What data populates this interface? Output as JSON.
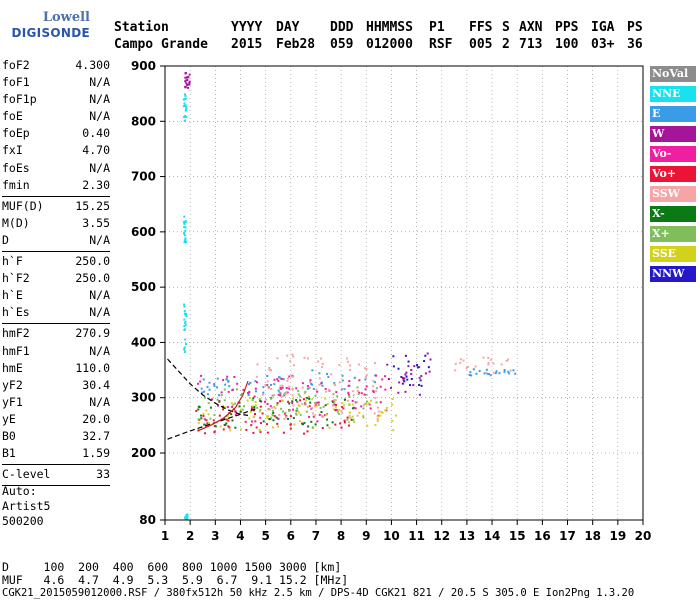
{
  "logo": {
    "top": "Lowell",
    "bottom": "DIGISONDE"
  },
  "header": {
    "row1": [
      "Station",
      "YYYY",
      "DAY",
      "DDD",
      "HHMMSS",
      "P1",
      "FFS",
      "S",
      "AXN",
      "PPS",
      "IGA",
      "PS"
    ],
    "row2": [
      "Campo Grande",
      "2015",
      "Feb28",
      "059",
      "012000",
      "RSF",
      "005",
      "2",
      "713",
      "100",
      "03+",
      "36"
    ]
  },
  "params": {
    "group1": [
      {
        "name": "foF2",
        "value": "4.300"
      },
      {
        "name": "foF1",
        "value": "N/A"
      },
      {
        "name": "foF1p",
        "value": "N/A"
      },
      {
        "name": "foE",
        "value": "N/A"
      },
      {
        "name": "foEp",
        "value": "0.40"
      },
      {
        "name": "fxI",
        "value": "4.70"
      },
      {
        "name": "foEs",
        "value": "N/A"
      },
      {
        "name": "fmin",
        "value": "2.30"
      }
    ],
    "group2": [
      {
        "name": "MUF(D)",
        "value": "15.25"
      },
      {
        "name": "M(D)",
        "value": "3.55"
      },
      {
        "name": "D",
        "value": "N/A"
      }
    ],
    "group3": [
      {
        "name": "h`F",
        "value": "250.0"
      },
      {
        "name": "h`F2",
        "value": "250.0"
      },
      {
        "name": "h`E",
        "value": "N/A"
      },
      {
        "name": "h`Es",
        "value": "N/A"
      }
    ],
    "group4": [
      {
        "name": "hmF2",
        "value": "270.9"
      },
      {
        "name": "hmF1",
        "value": "N/A"
      },
      {
        "name": "hmE",
        "value": "110.0"
      },
      {
        "name": "yF2",
        "value": "30.4"
      },
      {
        "name": "yF1",
        "value": "N/A"
      },
      {
        "name": "yE",
        "value": "20.0"
      },
      {
        "name": "B0",
        "value": "32.7"
      },
      {
        "name": "B1",
        "value": "1.59"
      }
    ],
    "group5": [
      {
        "name": "C-level",
        "value": "33"
      }
    ]
  },
  "auto": {
    "line1": "Auto:",
    "line2": "Artist5",
    "line3": "500200"
  },
  "legend": [
    {
      "label": "NoVal",
      "color": "#8c8c8c"
    },
    {
      "label": "NNE",
      "color": "#19e1f0"
    },
    {
      "label": "E",
      "color": "#3a9be6"
    },
    {
      "label": "W",
      "color": "#a5159a"
    },
    {
      "label": "Vo-",
      "color": "#f01ea0"
    },
    {
      "label": "Vo+",
      "color": "#eb1436"
    },
    {
      "label": "SSW",
      "color": "#f5a5a5"
    },
    {
      "label": "X-",
      "color": "#0b7a14"
    },
    {
      "label": "X+",
      "color": "#7fbe5a"
    },
    {
      "label": "SSE",
      "color": "#d2d21e"
    },
    {
      "label": "NNW",
      "color": "#2418c8"
    }
  ],
  "bottom": {
    "line1": "D     100  200  400  600  800 1000 1500 3000 [km]",
    "line2": "MUF   4.6  4.7  4.9  5.3  5.9  6.7  9.1 15.2 [MHz]",
    "line3": "CGK21_2015059012000.RSF / 380fx512h 50 kHz 2.5 km / DPS-4D CGK21 821 / 20.5 S 305.0 E Ion2Png 1.3.20"
  },
  "chart_data": {
    "type": "scatter",
    "title": "",
    "xlabel": "",
    "ylabel": "",
    "xlim": [
      1,
      20
    ],
    "ylim": [
      80,
      900
    ],
    "x_ticks": [
      1,
      2,
      3,
      4,
      5,
      6,
      7,
      8,
      9,
      10,
      11,
      12,
      13,
      14,
      15,
      16,
      17,
      18,
      19,
      20
    ],
    "y_ticks": [
      80,
      200,
      300,
      400,
      500,
      600,
      700,
      800,
      900
    ],
    "grid": "dotted",
    "legend_position": "right",
    "series": [
      {
        "name": "NNE",
        "color": "#19e1f0",
        "clusters": [
          {
            "x": [
              1.75,
              1.85
            ],
            "y": [
              800,
              850
            ]
          },
          {
            "x": [
              1.75,
              1.85
            ],
            "y": [
              580,
              630
            ]
          },
          {
            "x": [
              1.75,
              1.85
            ],
            "y": [
              380,
              470
            ]
          },
          {
            "x": [
              1.8,
              1.9
            ],
            "y": [
              82,
              90
            ]
          }
        ]
      },
      {
        "name": "E",
        "color": "#3a9be6",
        "clusters": [
          {
            "x": [
              2.4,
              3.9
            ],
            "y": [
              300,
              335
            ]
          },
          {
            "x": [
              4.3,
              6.2
            ],
            "y": [
              305,
              340
            ]
          },
          {
            "x": [
              6.5,
              9.5
            ],
            "y": [
              315,
              350
            ]
          },
          {
            "x": [
              12.9,
              15.1
            ],
            "y": [
              340,
              352
            ]
          }
        ]
      },
      {
        "name": "W",
        "color": "#a5159a",
        "clusters": [
          {
            "x": [
              9.8,
              11.6
            ],
            "y": [
              300,
              380
            ]
          },
          {
            "x": [
              1.8,
              2.0
            ],
            "y": [
              860,
              890
            ]
          }
        ]
      },
      {
        "name": "Vo-",
        "color": "#f01ea0",
        "clusters": [
          {
            "x": [
              2.2,
              9.8
            ],
            "y": [
              255,
              340
            ]
          }
        ]
      },
      {
        "name": "Vo+",
        "color": "#eb1436",
        "clusters": [
          {
            "x": [
              2.2,
              8.5
            ],
            "y": [
              235,
              300
            ]
          }
        ]
      },
      {
        "name": "SSW",
        "color": "#f5a5a5",
        "clusters": [
          {
            "x": [
              4.5,
              9.5
            ],
            "y": [
              260,
              380
            ]
          },
          {
            "x": [
              12.5,
              15
            ],
            "y": [
              345,
              375
            ]
          }
        ]
      },
      {
        "name": "X-",
        "color": "#0b7a14",
        "clusters": [
          {
            "x": [
              2.3,
              8.5
            ],
            "y": [
              245,
              300
            ]
          }
        ]
      },
      {
        "name": "X+",
        "color": "#7fbe5a",
        "clusters": [
          {
            "x": [
              2.3,
              9.5
            ],
            "y": [
              260,
              320
            ]
          }
        ]
      },
      {
        "name": "SSE",
        "color": "#d2d21e",
        "clusters": [
          {
            "x": [
              2.3,
              10.2
            ],
            "y": [
              240,
              300
            ]
          }
        ]
      },
      {
        "name": "NNW",
        "color": "#2418c8",
        "clusters": [
          {
            "x": [
              10.0,
              11.5
            ],
            "y": [
              320,
              380
            ]
          }
        ]
      }
    ],
    "traces": [
      {
        "name": "profile-dashed",
        "color": "#000000",
        "dashed": true,
        "x": [
          1.1,
          1.5,
          2.0,
          2.5,
          3.0,
          3.5,
          4.0,
          4.3
        ],
        "y": [
          370,
          350,
          325,
          305,
          290,
          278,
          270,
          268
        ]
      },
      {
        "name": "trace-upper",
        "color": "#000000",
        "dashed": true,
        "x": [
          1.1,
          2.0,
          3.0,
          4.0,
          4.6
        ],
        "y": [
          225,
          240,
          255,
          270,
          280
        ]
      },
      {
        "name": "trace-red",
        "color": "#c81e1e",
        "dashed": false,
        "x": [
          2.3,
          2.8,
          3.3,
          3.8,
          4.1,
          4.3
        ],
        "y": [
          240,
          250,
          262,
          282,
          305,
          330
        ]
      }
    ]
  }
}
